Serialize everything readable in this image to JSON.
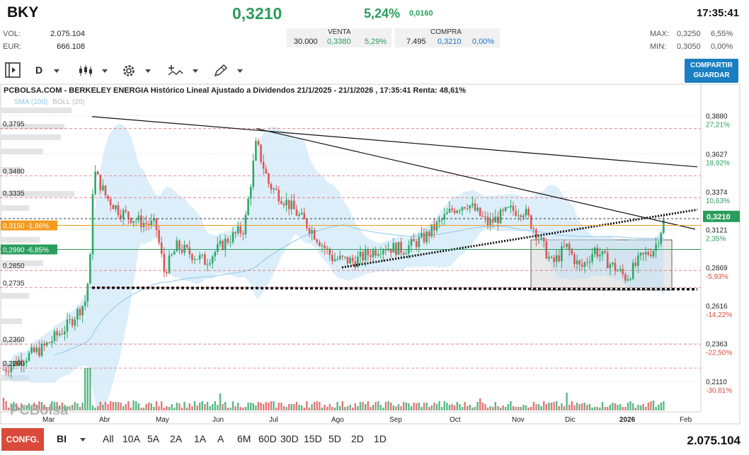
{
  "header": {
    "ticker": "BKY",
    "price": "0,3210",
    "pct": "5,24%",
    "change": "0,0160",
    "time": "17:35:41",
    "vol_label": "VOL:",
    "vol_value": "2.075.104",
    "eur_label": "EUR:",
    "eur_value": "666.108",
    "venta_label": "VENTA",
    "venta_qty": "30.000",
    "venta_price": "0,3380",
    "venta_pct": "5,29%",
    "compra_label": "COMPRA",
    "compra_qty": "7.495",
    "compra_price": "0,3210",
    "compra_pct": "0,00%",
    "max_label": "MAX:",
    "max_price": "0,3250",
    "max_pct": "6,55%",
    "min_label": "MIN:",
    "min_price": "0,3050",
    "min_pct": "0,00%"
  },
  "toolbar": {
    "period": "D",
    "share_line1": "COMPARTIR",
    "share_line2": "GUARDAR"
  },
  "footer": {
    "config": "CONFG.",
    "mode": "BI",
    "ranges": [
      "All",
      "10A",
      "5A",
      "2A",
      "1A",
      "A",
      "6M",
      "60D",
      "30D",
      "15D",
      "5D",
      "2D",
      "1D"
    ],
    "volume": "2.075.104"
  },
  "chart_data": {
    "type": "candlestick",
    "title": "PCBOLSA.COM - BERKELEY ENERGIA Histórico Lineal Ajustado a Dividendos 21/1/2025 - 21/1/2026 , 17:35:41 Renta: 48,61%",
    "legend": [
      "SMA (100)",
      "BOLL (20)"
    ],
    "watermark": "PCBolsa",
    "x_labels": [
      "Mar",
      "Abr",
      "May",
      "Jun",
      "Jul",
      "Ago",
      "Sep",
      "Oct",
      "Nov",
      "Dic",
      "2026",
      "Feb"
    ],
    "ylim": [
      0.2045,
      0.3935
    ],
    "left_levels": [
      "0,3795",
      "0,3480",
      "0,3335",
      "0,2850",
      "0,2735",
      "0,2360",
      "0,2200"
    ],
    "left_tags": [
      {
        "label": "0,3150 -1,86%",
        "price": 0.315,
        "color": "#f39a1e"
      },
      {
        "label": "0,2990 -6,85%",
        "price": 0.299,
        "color": "#2a9d5c"
      }
    ],
    "right_axis": [
      {
        "price": "0,3880",
        "pct": "27,21%",
        "pct_color": "#2a9d5c"
      },
      {
        "price": "0,3627",
        "pct": "18,92%",
        "pct_color": "#2a9d5c"
      },
      {
        "price": "0,3374",
        "pct": "10,63%",
        "pct_color": "#2a9d5c"
      },
      {
        "price": "0,3121",
        "pct": "2,35%",
        "pct_color": "#2a9d5c"
      },
      {
        "price": "0,2869",
        "pct": "-5,93%",
        "pct_color": "#d94a3a"
      },
      {
        "price": "0,2616",
        "pct": "-14,22%",
        "pct_color": "#d94a3a"
      },
      {
        "price": "0,2363",
        "pct": "-22,50%",
        "pct_color": "#d94a3a"
      },
      {
        "price": "0,2110",
        "pct": "-30,81%",
        "pct_color": "#d94a3a"
      }
    ],
    "current_price": "0,3210",
    "colors": {
      "up": "#2ea866",
      "down": "#e05555",
      "boll": "#bfe0f5",
      "sma": "#8cc8ec",
      "guide": "#e07070",
      "current": "#2a9d5c"
    }
  }
}
